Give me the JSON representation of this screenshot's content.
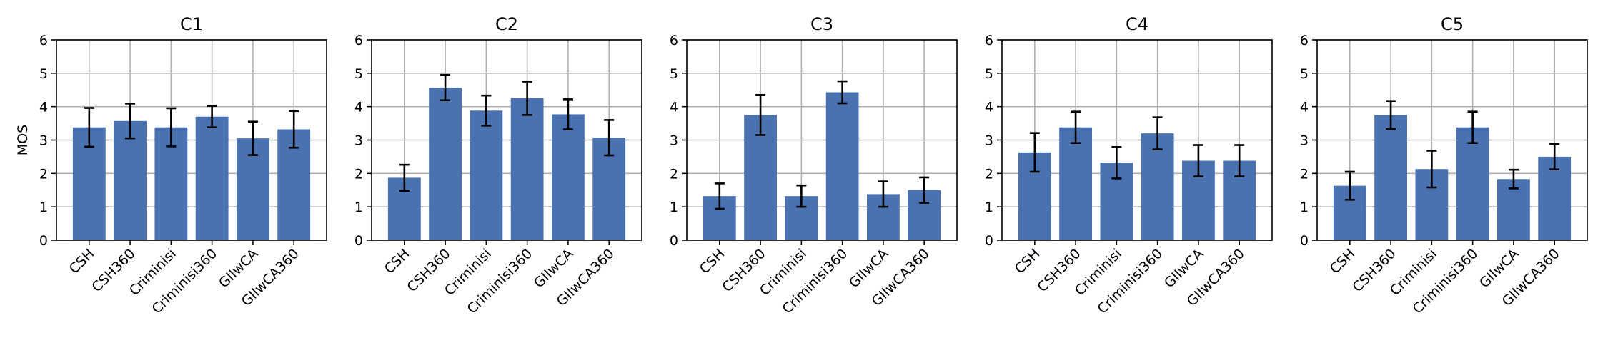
{
  "figure": {
    "ylabel": "MOS"
  },
  "style": {
    "bar_color": "#4a72b0",
    "error_color": "#000000",
    "grid_color": "#b0b0b0"
  },
  "chart_data": [
    {
      "type": "bar",
      "title": "C1",
      "categories": [
        "CSH",
        "CSH360",
        "Criminisi",
        "Criminisi360",
        "GIIwCA",
        "GIIwCA360"
      ],
      "values": [
        3.38,
        3.57,
        3.38,
        3.7,
        3.05,
        3.32
      ],
      "errors": [
        0.58,
        0.52,
        0.57,
        0.32,
        0.5,
        0.55
      ],
      "ylim": [
        0,
        6
      ],
      "yticks": [
        0,
        1,
        2,
        3,
        4,
        5,
        6
      ],
      "ylabel": "MOS",
      "grid": true
    },
    {
      "type": "bar",
      "title": "C2",
      "categories": [
        "CSH",
        "CSH360",
        "Criminisi",
        "Criminisi360",
        "GIIwCA",
        "GIIwCA360"
      ],
      "values": [
        1.87,
        4.57,
        3.88,
        4.25,
        3.77,
        3.07
      ],
      "errors": [
        0.39,
        0.38,
        0.45,
        0.5,
        0.45,
        0.53
      ],
      "ylim": [
        0,
        6
      ],
      "yticks": [
        0,
        1,
        2,
        3,
        4,
        5,
        6
      ],
      "ylabel": "",
      "grid": true
    },
    {
      "type": "bar",
      "title": "C3",
      "categories": [
        "CSH",
        "CSH360",
        "Criminisi",
        "Criminisi360",
        "GIIwCA",
        "GIIwCA360"
      ],
      "values": [
        1.32,
        3.75,
        1.32,
        4.43,
        1.38,
        1.5
      ],
      "errors": [
        0.38,
        0.6,
        0.32,
        0.33,
        0.38,
        0.38
      ],
      "ylim": [
        0,
        6
      ],
      "yticks": [
        0,
        1,
        2,
        3,
        4,
        5,
        6
      ],
      "ylabel": "",
      "grid": true
    },
    {
      "type": "bar",
      "title": "C4",
      "categories": [
        "CSH",
        "CSH360",
        "Criminisi",
        "Criminisi360",
        "GIIwCA",
        "GIIwCA360"
      ],
      "values": [
        2.63,
        3.38,
        2.32,
        3.2,
        2.38,
        2.38
      ],
      "errors": [
        0.58,
        0.47,
        0.47,
        0.48,
        0.47,
        0.47
      ],
      "ylim": [
        0,
        6
      ],
      "yticks": [
        0,
        1,
        2,
        3,
        4,
        5,
        6
      ],
      "ylabel": "",
      "grid": true
    },
    {
      "type": "bar",
      "title": "C5",
      "categories": [
        "CSH",
        "CSH360",
        "Criminisi",
        "Criminisi360",
        "GIIwCA",
        "GIIwCA360"
      ],
      "values": [
        1.63,
        3.75,
        2.13,
        3.38,
        1.83,
        2.5
      ],
      "errors": [
        0.42,
        0.42,
        0.55,
        0.47,
        0.28,
        0.38
      ],
      "ylim": [
        0,
        6
      ],
      "yticks": [
        0,
        1,
        2,
        3,
        4,
        5,
        6
      ],
      "ylabel": "",
      "grid": true
    }
  ]
}
